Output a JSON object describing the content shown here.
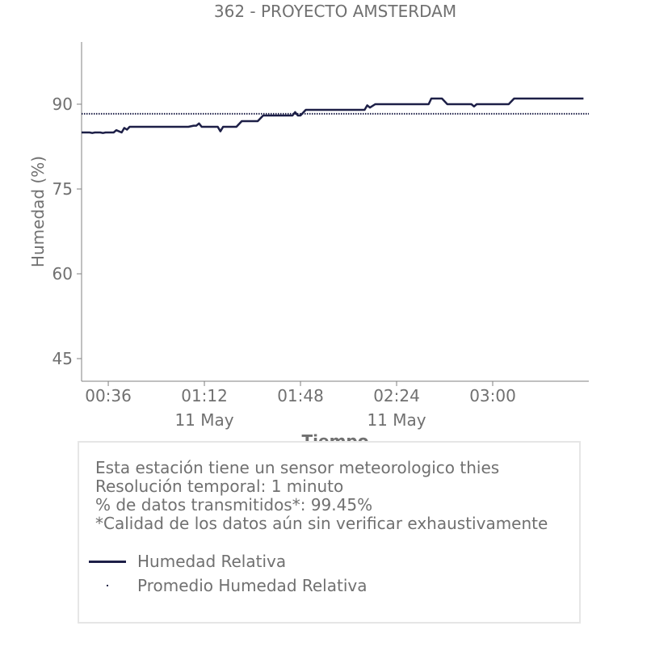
{
  "chart_data": {
    "type": "line",
    "title": "362 - PROYECTO AMSTERDAM",
    "xlabel": "Tiempo",
    "ylabel": "Humedad (%)",
    "xlim": [
      "00:26",
      "03:36"
    ],
    "ylim": [
      41,
      101
    ],
    "yticks": [
      45,
      60,
      75,
      90
    ],
    "xticks": [
      {
        "time": "00:36",
        "label": "00:36",
        "date": ""
      },
      {
        "time": "01:12",
        "label": "01:12",
        "date": "11 May"
      },
      {
        "time": "01:48",
        "label": "01:48",
        "date": ""
      },
      {
        "time": "02:24",
        "label": "02:24",
        "date": "11 May"
      },
      {
        "time": "03:00",
        "label": "03:00",
        "date": ""
      }
    ],
    "grid": false,
    "series": [
      {
        "name": "Humedad Relativa",
        "color": "#1d1f47",
        "style": "solid",
        "points": [
          [
            "00:26",
            85
          ],
          [
            "00:29",
            85
          ],
          [
            "00:30",
            84.9
          ],
          [
            "00:31",
            85
          ],
          [
            "00:33",
            85
          ],
          [
            "00:34",
            84.9
          ],
          [
            "00:35",
            85
          ],
          [
            "00:38",
            85
          ],
          [
            "00:39",
            85.4
          ],
          [
            "00:41",
            85
          ],
          [
            "00:42",
            85.8
          ],
          [
            "00:43",
            85.5
          ],
          [
            "00:44",
            86
          ],
          [
            "00:53",
            86
          ],
          [
            "00:58",
            86
          ],
          [
            "01:03",
            86
          ],
          [
            "01:06",
            86
          ],
          [
            "01:08",
            86.2
          ],
          [
            "01:09",
            86.2
          ],
          [
            "01:10",
            86.6
          ],
          [
            "01:11",
            86
          ],
          [
            "01:17",
            86
          ],
          [
            "01:18",
            85.2
          ],
          [
            "01:19",
            86
          ],
          [
            "01:24",
            86
          ],
          [
            "01:26",
            87
          ],
          [
            "01:32",
            87
          ],
          [
            "01:34",
            88
          ],
          [
            "01:45",
            88
          ],
          [
            "01:46",
            88.6
          ],
          [
            "01:47",
            88
          ],
          [
            "01:48",
            88
          ],
          [
            "01:50",
            89
          ],
          [
            "02:01",
            89
          ],
          [
            "02:12",
            89
          ],
          [
            "02:13",
            89.8
          ],
          [
            "02:14",
            89.4
          ],
          [
            "02:16",
            90
          ],
          [
            "02:30",
            90
          ],
          [
            "02:36",
            90
          ],
          [
            "02:37",
            91
          ],
          [
            "02:41",
            91
          ],
          [
            "02:43",
            90
          ],
          [
            "02:52",
            90
          ],
          [
            "02:53",
            89.6
          ],
          [
            "02:54",
            90
          ],
          [
            "02:58",
            90
          ],
          [
            "03:06",
            90
          ],
          [
            "03:08",
            91
          ],
          [
            "03:13",
            91
          ],
          [
            "03:24",
            91
          ],
          [
            "03:34",
            91
          ]
        ]
      },
      {
        "name": "Promedio Humedad Relativa",
        "color": "#1d1f47",
        "style": "dotted",
        "value": 88.3
      }
    ]
  },
  "info": {
    "lines": [
      "Esta estación tiene un sensor meteorologico thies",
      "Resolución temporal: 1 minuto",
      "% de datos transmitidos*: 99.45%",
      "*Calidad de los datos aún sin verificar exhaustivamente"
    ]
  }
}
